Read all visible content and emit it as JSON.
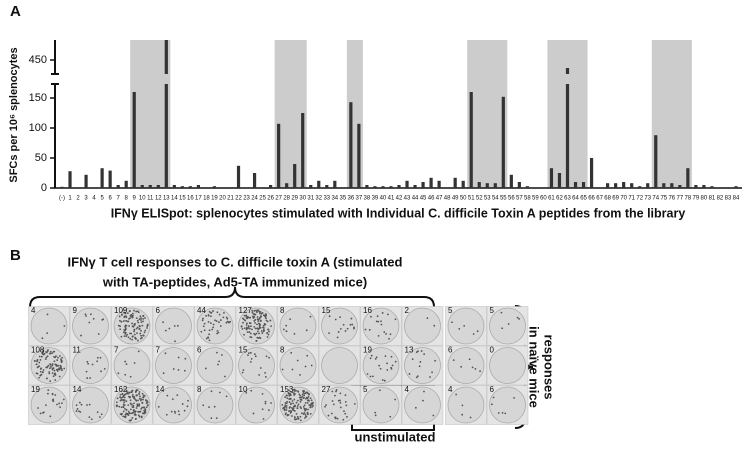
{
  "panel_labels": [
    "A",
    "B"
  ],
  "chart_data": {
    "type": "bar",
    "title": "IFNγ ELISpot: splenocytes stimulated with Individual C. difficile Toxin A peptides from the library",
    "y_label": "SFCs per 10⁶ splenocytes",
    "categories": [
      "(-)",
      "1",
      "2",
      "3",
      "4",
      "5",
      "6",
      "7",
      "8",
      "9",
      "10",
      "11",
      "12",
      "13",
      "14",
      "15",
      "16",
      "17",
      "18",
      "19",
      "20",
      "21",
      "22",
      "23",
      "24",
      "25",
      "26",
      "27",
      "28",
      "29",
      "30",
      "31",
      "32",
      "33",
      "34",
      "35",
      "36",
      "37",
      "38",
      "39",
      "40",
      "41",
      "42",
      "43",
      "44",
      "45",
      "46",
      "47",
      "48",
      "49",
      "50",
      "51",
      "52",
      "53",
      "54",
      "55",
      "56",
      "57",
      "58",
      "59",
      "60",
      "61",
      "62",
      "63",
      "64",
      "65",
      "66",
      "67",
      "68",
      "69",
      "70",
      "71",
      "72",
      "73",
      "74",
      "75",
      "76",
      "77",
      "78",
      "79",
      "80",
      "81",
      "82",
      "83",
      "84"
    ],
    "values": [
      2,
      28,
      0,
      22,
      0,
      33,
      29,
      5,
      12,
      160,
      5,
      5,
      5,
      500,
      5,
      3,
      3,
      5,
      0,
      3,
      0,
      0,
      37,
      0,
      25,
      0,
      5,
      107,
      8,
      40,
      125,
      5,
      12,
      5,
      12,
      0,
      143,
      107,
      5,
      3,
      3,
      3,
      5,
      12,
      5,
      10,
      17,
      12,
      0,
      17,
      12,
      160,
      10,
      8,
      8,
      152,
      22,
      10,
      3,
      0,
      0,
      33,
      25,
      430,
      10,
      10,
      50,
      0,
      8,
      8,
      10,
      8,
      3,
      8,
      88,
      8,
      8,
      5,
      33,
      5,
      5,
      3,
      0,
      0,
      3
    ],
    "color": "#333333",
    "ylim": [
      0,
      500
    ],
    "ybreak": [
      170,
      420
    ],
    "yticks": [
      0,
      50,
      100,
      150,
      450
    ],
    "highlights": [
      {
        "from": 9,
        "to": 13
      },
      {
        "from": 27,
        "to": 30
      },
      {
        "from": 36,
        "to": 37
      },
      {
        "from": 51,
        "to": 55
      },
      {
        "from": 61,
        "to": 65
      },
      {
        "from": 74,
        "to": 78
      }
    ],
    "highlight_color": "#cccccc"
  },
  "panel_b": {
    "title_lines": [
      "IFNγ T cell responses to C. difficile toxin A (stimulated",
      "with TA-peptides, Ad5-TA immunized mice)"
    ],
    "wells": [
      [
        4,
        9,
        109,
        6,
        44,
        127,
        8,
        15,
        16,
        2,
        5,
        5
      ],
      [
        108,
        11,
        7,
        7,
        6,
        15,
        8,
        null,
        19,
        13,
        6,
        0
      ],
      [
        19,
        14,
        162,
        14,
        8,
        10,
        153,
        27,
        5,
        4,
        4,
        6
      ]
    ],
    "unstimulated_label": "unstimulated",
    "naive_label_lines": [
      "responses",
      "in naïve mice"
    ]
  }
}
